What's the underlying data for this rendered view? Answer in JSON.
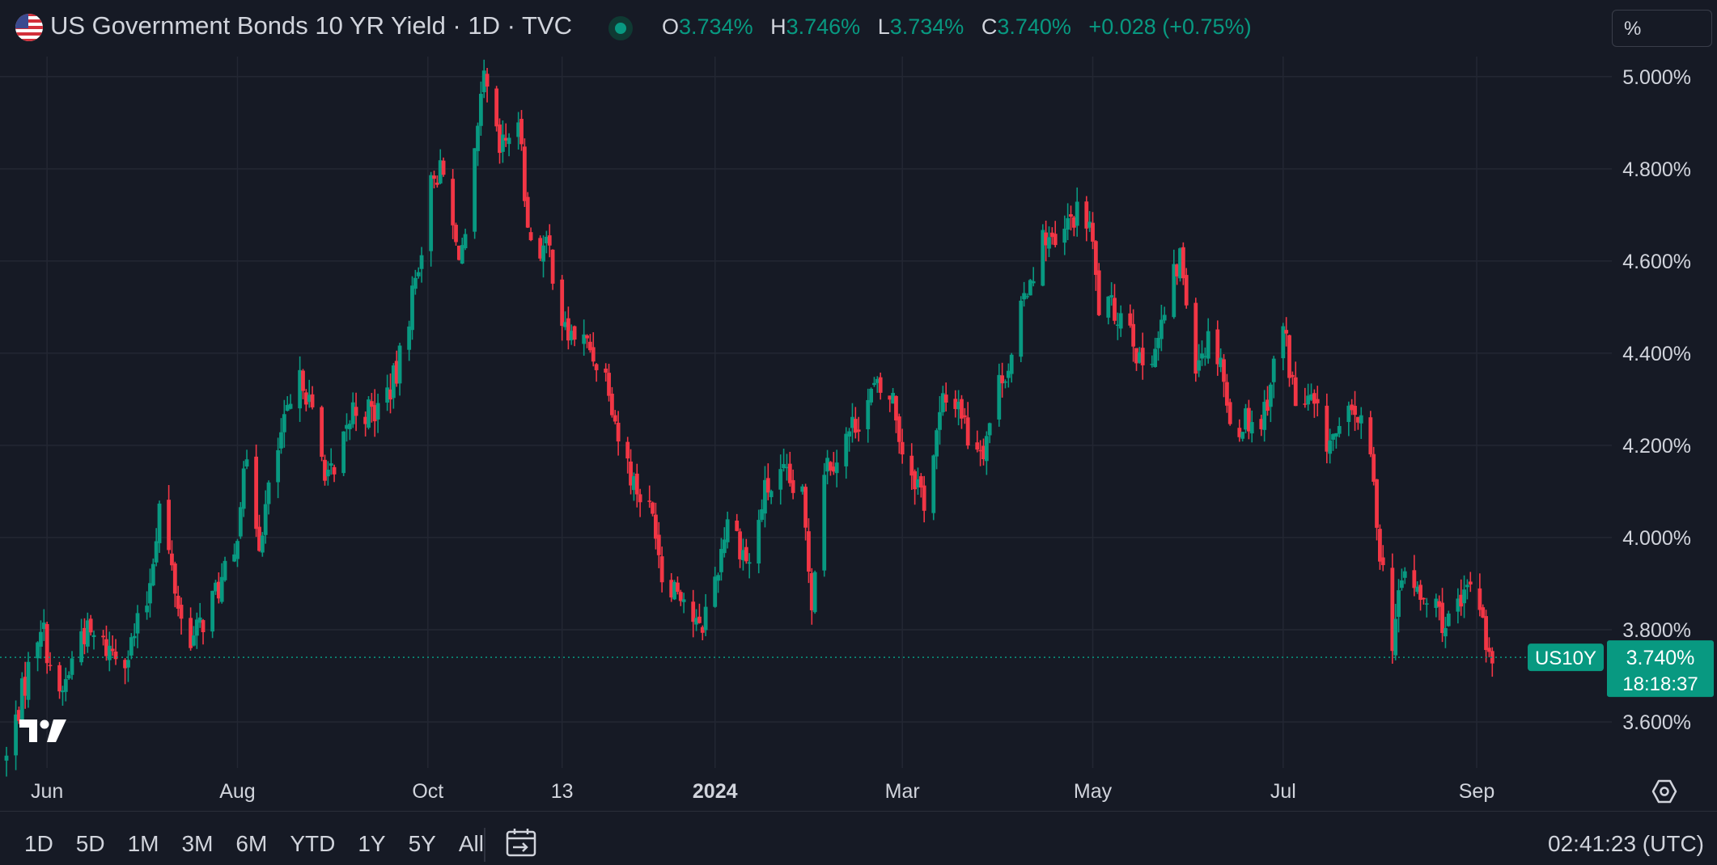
{
  "header": {
    "title": "US Government Bonds 10 YR Yield · 1D · TVC",
    "ohlc": [
      {
        "key": "O",
        "value": "3.734%"
      },
      {
        "key": "H",
        "value": "3.746%"
      },
      {
        "key": "L",
        "value": "3.734%"
      },
      {
        "key": "C",
        "value": "3.740%"
      }
    ],
    "change": "+0.028 (+0.75%)",
    "scale_mode": "%"
  },
  "price_badge": {
    "symbol": "US10Y",
    "price": "3.740%",
    "countdown": "18:18:37"
  },
  "time_ranges": [
    "1D",
    "5D",
    "1M",
    "3M",
    "6M",
    "YTD",
    "1Y",
    "5Y",
    "All"
  ],
  "clock": "02:41:23 (UTC)",
  "colors": {
    "background": "#161a25",
    "up": "#089981",
    "down": "#f23645",
    "grid": "#232733",
    "text": "#d1d4dc"
  },
  "chart_data": {
    "type": "candlestick",
    "interval": "1D",
    "y_unit": "%",
    "ylim": [
      3.5,
      5.04
    ],
    "y_ticks": [
      3.6,
      3.8,
      4.0,
      4.2,
      4.4,
      4.6,
      4.8,
      5.0
    ],
    "y_tick_labels": [
      "3.600%",
      "3.800%",
      "4.000%",
      "4.200%",
      "4.400%",
      "4.600%",
      "4.800%",
      "5.000%"
    ],
    "x_range": [
      "2023-05-19",
      "2024-09-08"
    ],
    "x_ticks": [
      {
        "date": "2023-06-01",
        "label": "Jun",
        "bold": false
      },
      {
        "date": "2023-08-01",
        "label": "Aug",
        "bold": false
      },
      {
        "date": "2023-10-01",
        "label": "Oct",
        "bold": false
      },
      {
        "date": "2023-11-13",
        "label": "13",
        "bold": false
      },
      {
        "date": "2024-01-01",
        "label": "2024",
        "bold": true
      },
      {
        "date": "2024-03-01",
        "label": "Mar",
        "bold": false
      },
      {
        "date": "2024-05-01",
        "label": "May",
        "bold": false
      },
      {
        "date": "2024-07-01",
        "label": "Jul",
        "bold": false
      },
      {
        "date": "2024-09-01",
        "label": "Sep",
        "bold": false
      }
    ],
    "last_price": 3.74,
    "close_path": [
      [
        "2023-05-19",
        3.52
      ],
      [
        "2023-05-24",
        3.66
      ],
      [
        "2023-05-30",
        3.82
      ],
      [
        "2023-06-05",
        3.64
      ],
      [
        "2023-06-12",
        3.8
      ],
      [
        "2023-06-20",
        3.76
      ],
      [
        "2023-06-27",
        3.75
      ],
      [
        "2023-07-03",
        3.86
      ],
      [
        "2023-07-07",
        4.07
      ],
      [
        "2023-07-14",
        3.82
      ],
      [
        "2023-07-18",
        3.78
      ],
      [
        "2023-07-25",
        3.88
      ],
      [
        "2023-07-31",
        3.95
      ],
      [
        "2023-08-03",
        4.17
      ],
      [
        "2023-08-08",
        4.0
      ],
      [
        "2023-08-15",
        4.22
      ],
      [
        "2023-08-22",
        4.35
      ],
      [
        "2023-08-28",
        4.17
      ],
      [
        "2023-09-01",
        4.12
      ],
      [
        "2023-09-07",
        4.28
      ],
      [
        "2023-09-14",
        4.27
      ],
      [
        "2023-09-21",
        4.35
      ],
      [
        "2023-09-27",
        4.56
      ],
      [
        "2023-10-03",
        4.8
      ],
      [
        "2023-10-06",
        4.78
      ],
      [
        "2023-10-10",
        4.63
      ],
      [
        "2023-10-13",
        4.63
      ],
      [
        "2023-10-19",
        4.99
      ],
      [
        "2023-10-24",
        4.83
      ],
      [
        "2023-10-27",
        4.88
      ],
      [
        "2023-10-31",
        4.87
      ],
      [
        "2023-11-02",
        4.66
      ],
      [
        "2023-11-06",
        4.63
      ],
      [
        "2023-11-09",
        4.62
      ],
      [
        "2023-11-14",
        4.44
      ],
      [
        "2023-11-17",
        4.44
      ],
      [
        "2023-11-22",
        4.41
      ],
      [
        "2023-11-28",
        4.34
      ],
      [
        "2023-12-01",
        4.22
      ],
      [
        "2023-12-06",
        4.12
      ],
      [
        "2023-12-13",
        4.03
      ],
      [
        "2023-12-15",
        3.92
      ],
      [
        "2023-12-21",
        3.89
      ],
      [
        "2023-12-27",
        3.79
      ],
      [
        "2024-01-02",
        3.94
      ],
      [
        "2024-01-05",
        4.05
      ],
      [
        "2024-01-12",
        3.94
      ],
      [
        "2024-01-17",
        4.1
      ],
      [
        "2024-01-23",
        4.13
      ],
      [
        "2024-01-29",
        4.08
      ],
      [
        "2024-02-01",
        3.87
      ],
      [
        "2024-02-05",
        4.16
      ],
      [
        "2024-02-09",
        4.18
      ],
      [
        "2024-02-14",
        4.24
      ],
      [
        "2024-02-21",
        4.32
      ],
      [
        "2024-02-27",
        4.3
      ],
      [
        "2024-03-01",
        4.19
      ],
      [
        "2024-03-06",
        4.12
      ],
      [
        "2024-03-08",
        4.08
      ],
      [
        "2024-03-14",
        4.29
      ],
      [
        "2024-03-19",
        4.3
      ],
      [
        "2024-03-22",
        4.22
      ],
      [
        "2024-03-27",
        4.2
      ],
      [
        "2024-04-02",
        4.36
      ],
      [
        "2024-04-05",
        4.38
      ],
      [
        "2024-04-10",
        4.55
      ],
      [
        "2024-04-16",
        4.66
      ],
      [
        "2024-04-19",
        4.62
      ],
      [
        "2024-04-25",
        4.7
      ],
      [
        "2024-04-30",
        4.68
      ],
      [
        "2024-05-03",
        4.5
      ],
      [
        "2024-05-08",
        4.49
      ],
      [
        "2024-05-13",
        4.48
      ],
      [
        "2024-05-16",
        4.37
      ],
      [
        "2024-05-22",
        4.43
      ],
      [
        "2024-05-29",
        4.61
      ],
      [
        "2024-06-03",
        4.39
      ],
      [
        "2024-06-07",
        4.43
      ],
      [
        "2024-06-11",
        4.4
      ],
      [
        "2024-06-14",
        4.23
      ],
      [
        "2024-06-19",
        4.26
      ],
      [
        "2024-06-24",
        4.25
      ],
      [
        "2024-06-28",
        4.37
      ],
      [
        "2024-07-01",
        4.46
      ],
      [
        "2024-07-05",
        4.29
      ],
      [
        "2024-07-10",
        4.29
      ],
      [
        "2024-07-15",
        4.21
      ],
      [
        "2024-07-19",
        4.22
      ],
      [
        "2024-07-24",
        4.28
      ],
      [
        "2024-07-29",
        4.17
      ],
      [
        "2024-08-01",
        3.98
      ],
      [
        "2024-08-05",
        3.78
      ],
      [
        "2024-08-09",
        3.94
      ],
      [
        "2024-08-14",
        3.86
      ],
      [
        "2024-08-19",
        3.85
      ],
      [
        "2024-08-22",
        3.81
      ],
      [
        "2024-08-27",
        3.84
      ],
      [
        "2024-08-30",
        3.91
      ],
      [
        "2024-09-03",
        3.84
      ],
      [
        "2024-09-05",
        3.73
      ],
      [
        "2024-09-06",
        3.74
      ]
    ]
  }
}
